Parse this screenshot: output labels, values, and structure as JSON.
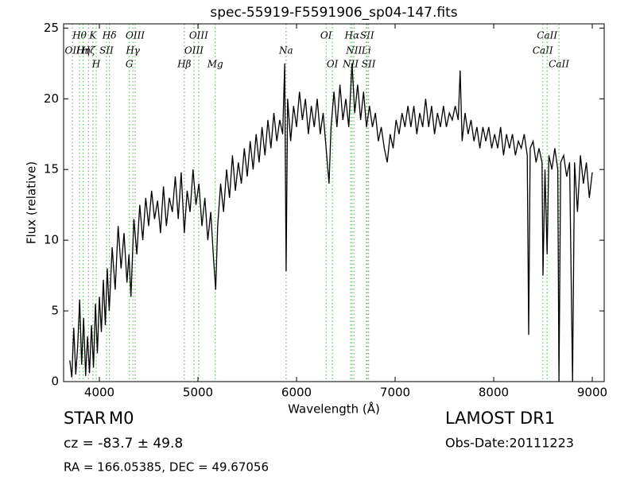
{
  "chart_data": {
    "type": "line",
    "title": "spec-55919-F5591906_sp04-147.fits",
    "xlabel": "Wavelength (Å)",
    "ylabel": "Flux (relative)",
    "color": "#000000",
    "line_color": "#66bb66",
    "xlim": [
      3637,
      9121
    ],
    "ylim": [
      0,
      25.3
    ],
    "xticks": [
      4000,
      5000,
      6000,
      7000,
      8000,
      9000
    ],
    "yticks": [
      0,
      5,
      10,
      15,
      20,
      25
    ],
    "x": [
      3700,
      3720,
      3740,
      3760,
      3780,
      3800,
      3820,
      3840,
      3860,
      3880,
      3900,
      3920,
      3940,
      3960,
      3980,
      4000,
      4020,
      4040,
      4060,
      4080,
      4100,
      4130,
      4160,
      4190,
      4220,
      4250,
      4280,
      4300,
      4320,
      4350,
      4380,
      4410,
      4440,
      4470,
      4500,
      4530,
      4560,
      4590,
      4620,
      4650,
      4680,
      4710,
      4740,
      4770,
      4800,
      4830,
      4861,
      4890,
      4920,
      4950,
      4980,
      5010,
      5040,
      5070,
      5100,
      5130,
      5160,
      5180,
      5200,
      5230,
      5260,
      5290,
      5320,
      5350,
      5380,
      5410,
      5440,
      5470,
      5500,
      5530,
      5560,
      5590,
      5620,
      5650,
      5680,
      5710,
      5740,
      5770,
      5800,
      5830,
      5860,
      5880,
      5894,
      5910,
      5940,
      5970,
      6000,
      6030,
      6060,
      6090,
      6120,
      6150,
      6180,
      6210,
      6240,
      6270,
      6300,
      6330,
      6350,
      6380,
      6410,
      6440,
      6470,
      6500,
      6530,
      6563,
      6590,
      6620,
      6650,
      6680,
      6710,
      6740,
      6770,
      6800,
      6830,
      6860,
      6890,
      6920,
      6950,
      6980,
      7010,
      7040,
      7070,
      7100,
      7130,
      7160,
      7190,
      7220,
      7250,
      7280,
      7310,
      7340,
      7370,
      7400,
      7430,
      7460,
      7490,
      7520,
      7550,
      7580,
      7610,
      7640,
      7660,
      7680,
      7710,
      7740,
      7770,
      7800,
      7830,
      7860,
      7890,
      7920,
      7950,
      7980,
      8010,
      8040,
      8070,
      8100,
      8130,
      8160,
      8190,
      8220,
      8250,
      8280,
      8310,
      8340,
      8355,
      8370,
      8400,
      8430,
      8460,
      8490,
      8500,
      8520,
      8542,
      8560,
      8590,
      8620,
      8650,
      8662,
      8680,
      8710,
      8740,
      8770,
      8800,
      8820,
      8850,
      8880,
      8910,
      8940,
      8970,
      9000
    ],
    "values": [
      1.5,
      0.3,
      3.8,
      0.5,
      2.5,
      5.8,
      1.2,
      4.5,
      0.4,
      3.2,
      0.6,
      4.0,
      1.0,
      5.5,
      2.0,
      6.0,
      3.5,
      7.2,
      4.0,
      8.0,
      5.0,
      9.5,
      6.5,
      11.0,
      8.0,
      10.5,
      7.0,
      9.0,
      6.0,
      11.5,
      9.0,
      12.5,
      10.0,
      13.0,
      11.0,
      13.5,
      11.5,
      12.8,
      10.5,
      13.8,
      11.0,
      13.0,
      12.0,
      14.5,
      11.5,
      14.8,
      10.5,
      13.5,
      12.0,
      15.0,
      12.5,
      14.0,
      11.0,
      13.0,
      10.0,
      12.0,
      8.5,
      6.5,
      11.0,
      14.0,
      12.0,
      15.0,
      13.0,
      16.0,
      13.5,
      15.5,
      14.0,
      16.5,
      14.5,
      17.0,
      15.0,
      17.5,
      15.5,
      18.0,
      16.0,
      18.5,
      16.5,
      19.0,
      17.0,
      18.5,
      17.5,
      22.5,
      7.8,
      20.0,
      17.0,
      19.5,
      18.0,
      20.5,
      18.5,
      20.0,
      17.5,
      19.5,
      18.0,
      20.0,
      17.5,
      19.0,
      16.5,
      14.0,
      18.0,
      20.5,
      18.0,
      21.0,
      18.5,
      20.0,
      18.0,
      22.5,
      19.0,
      21.0,
      18.5,
      20.5,
      18.0,
      19.5,
      18.0,
      19.0,
      17.0,
      18.0,
      16.5,
      15.5,
      17.5,
      16.5,
      18.5,
      17.5,
      19.0,
      18.0,
      19.5,
      18.0,
      19.5,
      17.5,
      19.0,
      18.0,
      20.0,
      18.0,
      19.5,
      17.5,
      19.0,
      18.0,
      19.5,
      18.0,
      19.0,
      18.5,
      19.5,
      18.5,
      22.0,
      17.0,
      19.0,
      17.5,
      18.5,
      17.0,
      18.0,
      16.5,
      18.0,
      17.0,
      18.0,
      16.5,
      17.5,
      16.5,
      18.0,
      16.0,
      17.5,
      16.5,
      17.5,
      16.0,
      17.0,
      16.5,
      17.5,
      16.0,
      3.3,
      16.5,
      17.0,
      15.5,
      16.5,
      15.5,
      7.5,
      15.0,
      9.0,
      16.0,
      15.0,
      16.5,
      15.0,
      0,
      15.5,
      16.0,
      14.5,
      15.5,
      0,
      15.5,
      12.0,
      16.0,
      14.0,
      15.5,
      13.0,
      14.8
    ],
    "lines": [
      {
        "name": "OII",
        "wavelength": 3727
      },
      {
        "name": "Hθ",
        "wavelength": 3798
      },
      {
        "name": "Hη",
        "wavelength": 3835
      },
      {
        "name": "Hζ",
        "wavelength": 3889
      },
      {
        "name": "K",
        "wavelength": 3934
      },
      {
        "name": "H",
        "wavelength": 3968
      },
      {
        "name": "SII",
        "wavelength": 4072
      },
      {
        "name": "Hδ",
        "wavelength": 4102
      },
      {
        "name": "G",
        "wavelength": 4304
      },
      {
        "name": "Hγ",
        "wavelength": 4340
      },
      {
        "name": "OIII",
        "wavelength": 4363
      },
      {
        "name": "Hβ",
        "wavelength": 4861
      },
      {
        "name": "OIII",
        "wavelength": 4959
      },
      {
        "name": "OIII",
        "wavelength": 5007
      },
      {
        "name": "Mg",
        "wavelength": 5175
      },
      {
        "name": "Na",
        "wavelength": 5894
      },
      {
        "name": "OI",
        "wavelength": 6300
      },
      {
        "name": "OI",
        "wavelength": 6364
      },
      {
        "name": "NII",
        "wavelength": 6548
      },
      {
        "name": "Hα",
        "wavelength": 6563
      },
      {
        "name": "NII",
        "wavelength": 6583
      },
      {
        "name": "Li",
        "wavelength": 6708
      },
      {
        "name": "SII",
        "wavelength": 6716
      },
      {
        "name": "SII",
        "wavelength": 6731
      },
      {
        "name": "CaII",
        "wavelength": 8498
      },
      {
        "name": "CaII",
        "wavelength": 8542
      },
      {
        "name": "CaII",
        "wavelength": 8662
      }
    ],
    "annotations": {
      "class": "STAR",
      "subclass": "M0",
      "redshift": "cz = -83.7 ± 49.8",
      "coordinates": "RA = 166.05385, DEC = 49.67056",
      "survey": "LAMOST DR1",
      "date": "Obs-Date:20111223"
    }
  }
}
